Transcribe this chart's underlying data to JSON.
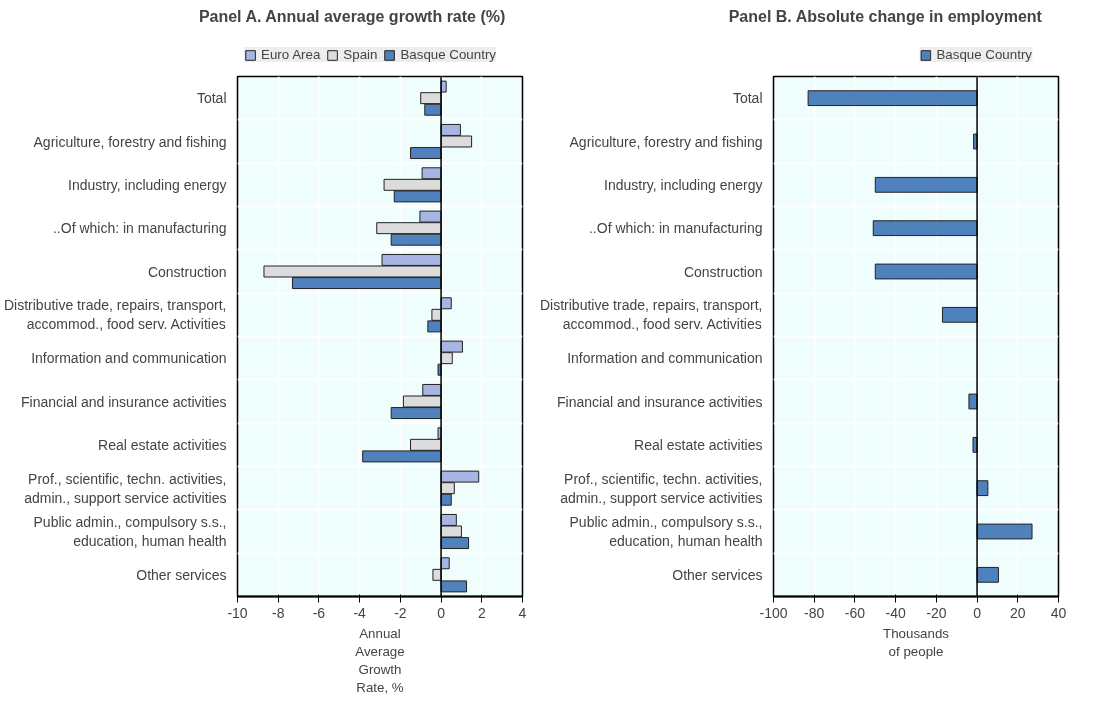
{
  "chart_data": [
    {
      "type": "bar",
      "orientation": "horizontal",
      "title": "Panel A. Annual average growth rate (%)",
      "xlabel": "Annual Average Growth Rate, %",
      "categories": [
        "Total",
        "Agriculture, forestry and fishing",
        "Industry, including energy",
        "..Of which: in manufacturing",
        "Construction",
        "Distributive trade, repairs, transport, accommod., food serv. Activities",
        "Information and communication",
        "Financial and insurance activities",
        "Real estate activities",
        "Prof., scientific, techn. activities, admin., support service activities",
        "Public admin., compulsory s.s., education, human health",
        "Other services"
      ],
      "series": [
        {
          "name": "Euro Area",
          "color": "#a7b5e3",
          "values": [
            0.25,
            0.95,
            -0.93,
            -1.04,
            -2.9,
            0.5,
            1.05,
            -0.9,
            -0.15,
            1.85,
            0.75,
            0.4
          ]
        },
        {
          "name": "Spain",
          "color": "#dcdcdc",
          "values": [
            -1.0,
            1.5,
            -2.8,
            -3.16,
            -8.7,
            -0.45,
            0.55,
            -1.85,
            -1.5,
            0.65,
            1.0,
            -0.4
          ]
        },
        {
          "name": "Basque Country",
          "color": "#4f81bd",
          "values": [
            -0.8,
            -1.5,
            -2.3,
            -2.45,
            -7.3,
            -0.65,
            -0.15,
            -2.45,
            -3.85,
            0.5,
            1.35,
            1.25
          ]
        }
      ],
      "xlim": [
        -10,
        4
      ],
      "xticks": [
        -10,
        -8,
        -6,
        -4,
        -2,
        0,
        2,
        4
      ],
      "grid": true,
      "legend": "top"
    },
    {
      "type": "bar",
      "orientation": "horizontal",
      "title": "Panel B. Absolute change in employment",
      "xlabel": "Thousands of people",
      "categories": [
        "Total",
        "Agriculture, forestry and fishing",
        "Industry, including energy",
        "..Of which: in manufacturing",
        "Construction",
        "Distributive trade, repairs, transport, accommod., food serv. Activities",
        "Information and communication",
        "Financial and insurance activities",
        "Real estate activities",
        "Prof., scientific, techn. activities, admin., support service activities",
        "Public admin., compulsory s.s., education, human health",
        "Other services"
      ],
      "series": [
        {
          "name": "Basque Country",
          "color": "#4f81bd",
          "values": [
            -83,
            -1.7,
            -50,
            -51,
            -50,
            -17,
            null,
            -4,
            -2,
            5.3,
            27,
            10.5
          ]
        }
      ],
      "xlim": [
        -100,
        40
      ],
      "xticks": [
        -100,
        -80,
        -60,
        -40,
        -20,
        0,
        20,
        40
      ],
      "grid": true,
      "legend": "top"
    }
  ]
}
